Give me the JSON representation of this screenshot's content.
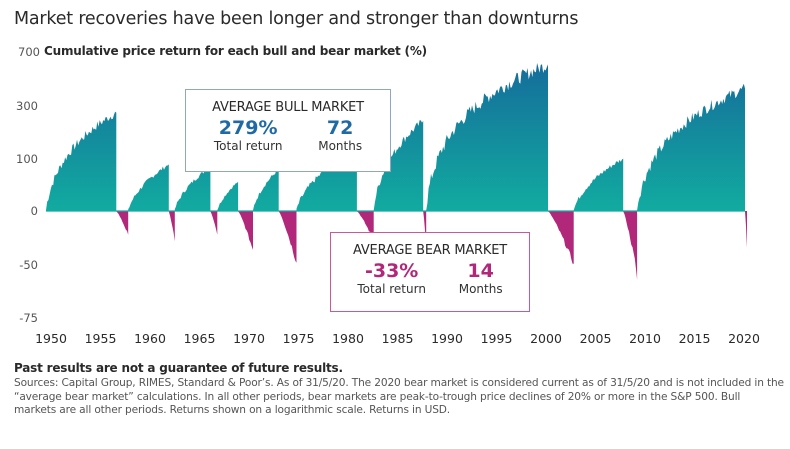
{
  "chart_data": {
    "type": "area",
    "title": "Market recoveries have been longer and stronger than downturns",
    "subtitle": "Cumulative price return for each bull and bear market (%)",
    "xlabel": "",
    "ylabel": "Cumulative price return (%)",
    "y_scale": "logarithmic",
    "y_ticks": [
      700,
      300,
      100,
      0,
      -50,
      -75
    ],
    "y_tick_labels": [
      "700",
      "300",
      "100",
      "0",
      "-50",
      "-75"
    ],
    "x_ticks": [
      1950,
      1955,
      1960,
      1965,
      1970,
      1975,
      1980,
      1985,
      1990,
      1995,
      2000,
      2005,
      2010,
      2015,
      2020
    ],
    "x_tick_labels": [
      "1950",
      "1955",
      "1960",
      "1965",
      "1970",
      "1975",
      "1980",
      "1985",
      "1990",
      "1995",
      "2000",
      "2005",
      "2010",
      "2015",
      "2020"
    ],
    "xlim": [
      1949.5,
      2020.5
    ],
    "ylim": [
      -75,
      700
    ],
    "grid": false,
    "series": [
      {
        "name": "Bull markets",
        "color_start": "#12aba0",
        "color_end": "#15689a",
        "periods": [
          {
            "start": 1949.5,
            "end": 1956.6,
            "peak_return": 267
          },
          {
            "start": 1957.8,
            "end": 1961.9,
            "peak_return": 86
          },
          {
            "start": 1962.5,
            "end": 1966.1,
            "peak_return": 80
          },
          {
            "start": 1966.8,
            "end": 1968.9,
            "peak_return": 48
          },
          {
            "start": 1970.4,
            "end": 1973.0,
            "peak_return": 74
          },
          {
            "start": 1974.8,
            "end": 1980.9,
            "peak_return": 126
          },
          {
            "start": 1982.6,
            "end": 1987.6,
            "peak_return": 229
          },
          {
            "start": 1987.9,
            "end": 2000.2,
            "peak_return": 582
          },
          {
            "start": 2002.8,
            "end": 2007.8,
            "peak_return": 101
          },
          {
            "start": 2009.2,
            "end": 2020.1,
            "peak_return": 401
          }
        ]
      },
      {
        "name": "Bear markets",
        "color": "#b1287a",
        "periods": [
          {
            "start": 1956.6,
            "end": 1957.8,
            "trough_return": -22
          },
          {
            "start": 1961.9,
            "end": 1962.5,
            "trough_return": -28
          },
          {
            "start": 1966.1,
            "end": 1966.8,
            "trough_return": -22
          },
          {
            "start": 1968.9,
            "end": 1970.4,
            "trough_return": -36
          },
          {
            "start": 1973.0,
            "end": 1974.8,
            "trough_return": -48
          },
          {
            "start": 1980.9,
            "end": 1982.6,
            "trough_return": -27
          },
          {
            "start": 1987.6,
            "end": 1987.9,
            "trough_return": -34
          },
          {
            "start": 2000.2,
            "end": 2002.8,
            "trough_return": -49
          },
          {
            "start": 2007.8,
            "end": 2009.2,
            "trough_return": -57
          },
          {
            "start": 2020.1,
            "end": 2020.3,
            "trough_return": -34
          }
        ]
      }
    ],
    "annotations": [
      {
        "title": "AVERAGE BULL MARKET",
        "return_value": "279%",
        "return_label": "Total return",
        "duration_value": "72",
        "duration_label": "Months"
      },
      {
        "title": "AVERAGE BEAR MARKET",
        "return_value": "-33%",
        "return_label": "Total return",
        "duration_value": "14",
        "duration_label": "Months"
      }
    ]
  },
  "footnote": {
    "bold": "Past results are not a guarantee of future results.",
    "text": "Sources: Capital Group, RIMES, Standard & Poor’s. As of 31/5/20. The 2020 bear market is considered current as of 31/5/20 and is not included in the “average bear market” calculations. In all other periods, bear markets are peak-to-trough price declines of 20% or more in the S&P 500. Bull markets are all other periods. Returns shown on a logarithmic scale. Returns in USD."
  }
}
